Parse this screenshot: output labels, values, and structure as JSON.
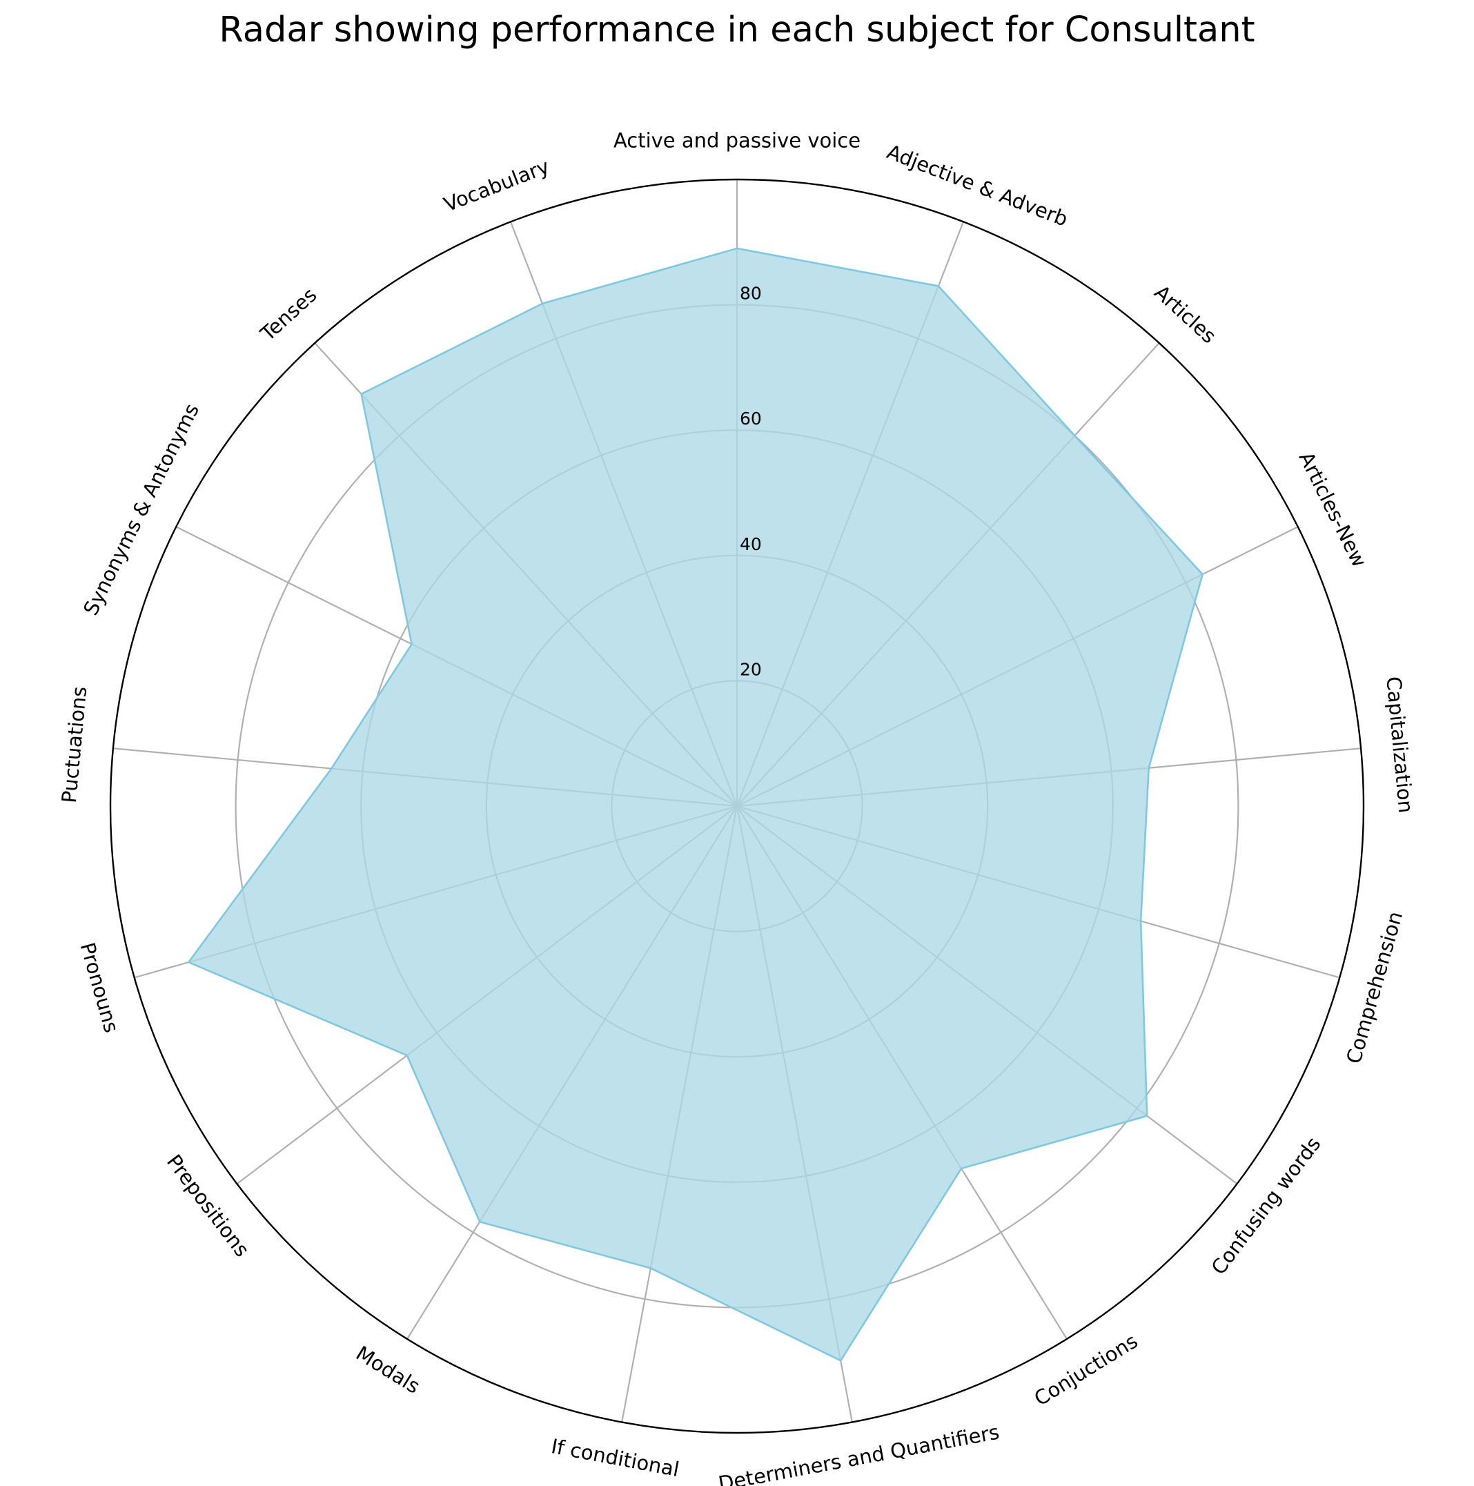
{
  "chart_data": {
    "type": "radar",
    "title": "Radar showing performance in each subject for Consultant",
    "categories": [
      "Active and passive voice",
      "Adjective & Adverb",
      "Articles",
      "Articles-New",
      "Capitalization",
      "Comprehension",
      "Confusing words",
      "Conjuctions",
      "Determiners and Quantifiers",
      "If conditional",
      "Modals",
      "Prepositions",
      "Pronouns",
      "Puctuations",
      "Synonyms & Antonyms",
      "Tenses",
      "Vocabulary"
    ],
    "series": [
      {
        "values": [
          89,
          89,
          80,
          83,
          66,
          67,
          82,
          68,
          90,
          75,
          78,
          66,
          91,
          65,
          58,
          89,
          86
        ]
      }
    ],
    "rticks": [
      20,
      40,
      60,
      80
    ],
    "rlim": [
      0,
      100
    ],
    "grid": true,
    "fill_color": "#add8e6",
    "line_color": "#7ec8e0",
    "grid_color": "#b0b0b0"
  }
}
